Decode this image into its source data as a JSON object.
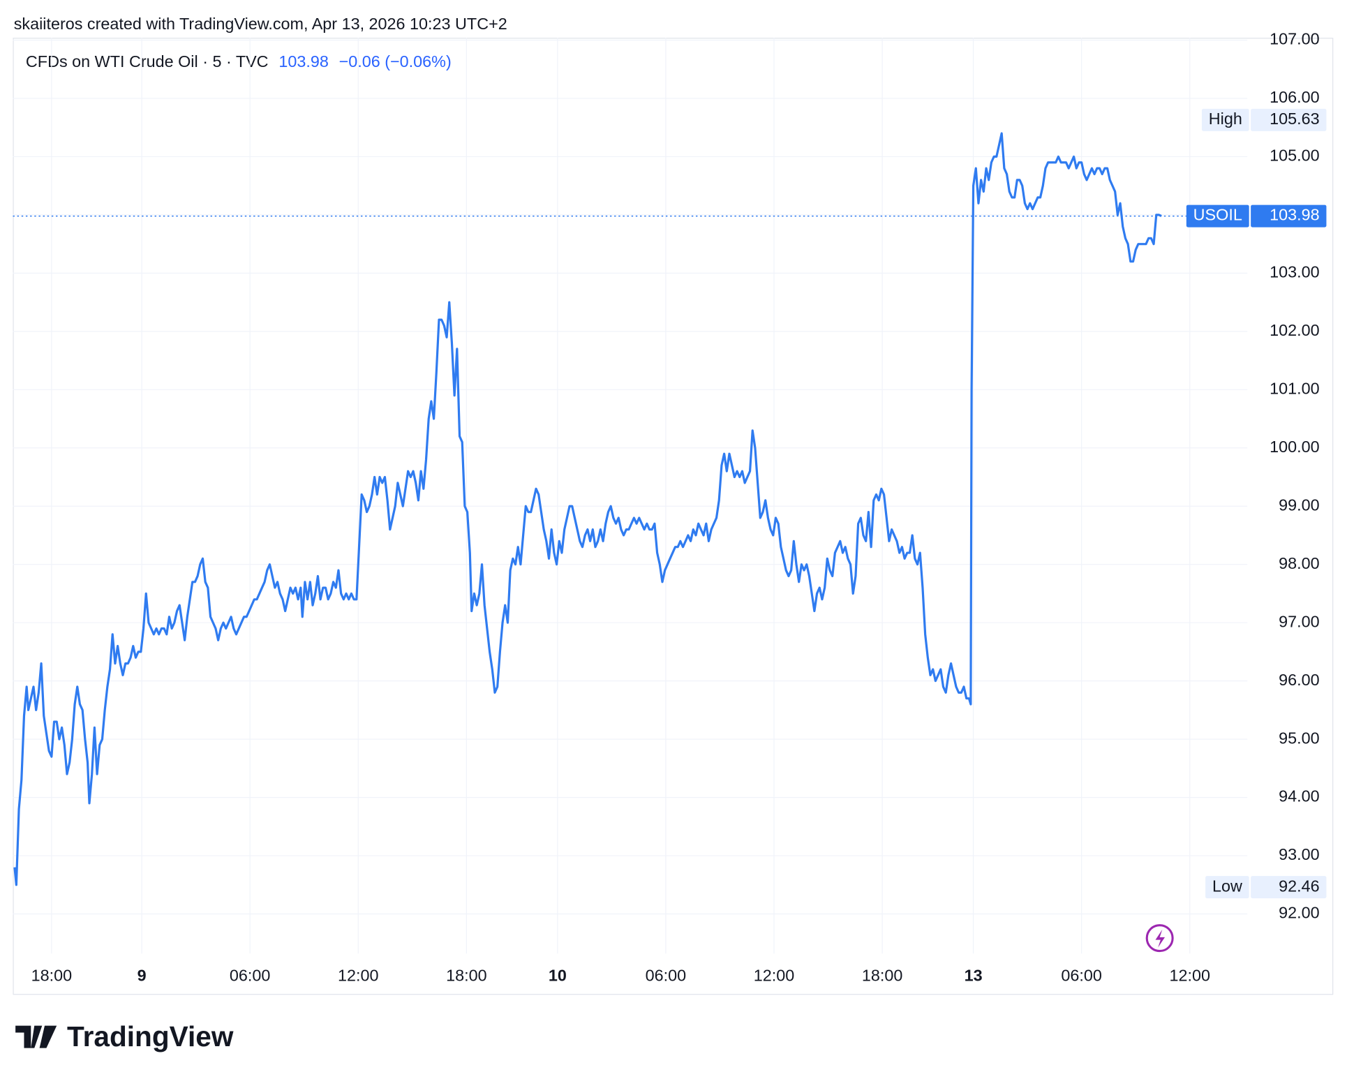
{
  "chart_data": {
    "type": "line",
    "attribution": "skaiiteros created with TradingView.com, Apr 13, 2026 10:23 UTC+2",
    "title": "CFDs on WTI Crude Oil · 5 · TVC",
    "last_price": 103.98,
    "change": "−0.06 (−0.06%)",
    "brand": "TradingView",
    "color": "#2f7bf0",
    "grid": true,
    "xlim": [
      15,
      1452
    ],
    "xticks": [
      {
        "value": 60,
        "label": "18:00"
      },
      {
        "value": 165,
        "label": "9"
      },
      {
        "value": 291,
        "label": "06:00"
      },
      {
        "value": 417,
        "label": "12:00"
      },
      {
        "value": 543,
        "label": "18:00"
      },
      {
        "value": 649,
        "label": "10"
      },
      {
        "value": 775,
        "label": "06:00"
      },
      {
        "value": 901,
        "label": "12:00"
      },
      {
        "value": 1027,
        "label": "18:00"
      },
      {
        "value": 1133,
        "label": "13"
      },
      {
        "value": 1259,
        "label": "06:00"
      },
      {
        "value": 1385,
        "label": "12:00"
      }
    ],
    "ylim": [
      91.32,
      107.04
    ],
    "yticks": [
      {
        "value": 92,
        "label": "92.00"
      },
      {
        "value": 93,
        "label": "93.00"
      },
      {
        "value": 94,
        "label": "94.00"
      },
      {
        "value": 95,
        "label": "95.00"
      },
      {
        "value": 96,
        "label": "96.00"
      },
      {
        "value": 97,
        "label": "97.00"
      },
      {
        "value": 98,
        "label": "98.00"
      },
      {
        "value": 99,
        "label": "99.00"
      },
      {
        "value": 100,
        "label": "100.00"
      },
      {
        "value": 101,
        "label": "101.00"
      },
      {
        "value": 102,
        "label": "102.00"
      },
      {
        "value": 103,
        "label": "103.00"
      },
      {
        "value": 104,
        "label": "104.00"
      },
      {
        "value": 105,
        "label": "105.00"
      },
      {
        "value": 106,
        "label": "106.00"
      },
      {
        "value": 107,
        "label": "107.00"
      }
    ],
    "high": {
      "label": "High",
      "value": 105.63
    },
    "low": {
      "label": "Low",
      "value": 92.46
    },
    "last": {
      "label": "USOIL",
      "value": 103.98
    },
    "x": [
      17,
      19,
      22,
      25,
      28,
      31,
      33,
      36,
      39,
      42,
      45,
      48,
      51,
      54,
      57,
      60,
      63,
      66,
      69,
      72,
      75,
      78,
      81,
      84,
      87,
      90,
      93,
      96,
      99,
      102,
      104,
      107,
      110,
      113,
      116,
      119,
      122,
      125,
      128,
      131,
      134,
      137,
      140,
      143,
      146,
      149,
      152,
      155,
      158,
      161,
      164,
      167,
      170,
      173,
      176,
      179,
      182,
      185,
      188,
      191,
      194,
      197,
      200,
      203,
      206,
      209,
      212,
      215,
      218,
      221,
      224,
      227,
      230,
      233,
      236,
      239,
      242,
      245,
      248,
      251,
      254,
      257,
      260,
      263,
      266,
      269,
      272,
      275,
      278,
      281,
      284,
      287,
      290,
      293,
      296,
      299,
      302,
      305,
      308,
      311,
      314,
      317,
      320,
      323,
      326,
      329,
      332,
      335,
      338,
      341,
      344,
      347,
      350,
      352,
      355,
      358,
      361,
      364,
      367,
      370,
      373,
      376,
      379,
      382,
      385,
      388,
      391,
      394,
      397,
      400,
      403,
      406,
      409,
      412,
      415,
      418,
      421,
      424,
      427,
      430,
      433,
      436,
      439,
      442,
      445,
      448,
      451,
      454,
      457,
      460,
      463,
      466,
      469,
      472,
      475,
      478,
      481,
      484,
      487,
      490,
      493,
      496,
      499,
      502,
      505,
      508,
      511,
      514,
      517,
      520,
      523,
      526,
      529,
      532,
      535,
      538,
      541,
      544,
      547,
      549,
      552,
      555,
      558,
      561,
      564,
      567,
      570,
      573,
      576,
      579,
      582,
      585,
      588,
      591,
      594,
      597,
      600,
      603,
      606,
      609,
      612,
      615,
      618,
      621,
      624,
      627,
      630,
      633,
      636,
      639,
      642,
      645,
      648,
      651,
      654,
      657,
      660,
      663,
      666,
      669,
      672,
      675,
      678,
      681,
      684,
      687,
      690,
      693,
      696,
      699,
      702,
      705,
      708,
      711,
      714,
      717,
      720,
      723,
      726,
      729,
      732,
      735,
      738,
      741,
      744,
      747,
      750,
      753,
      756,
      759,
      762,
      765,
      768,
      771,
      774,
      777,
      780,
      783,
      786,
      789,
      792,
      795,
      798,
      801,
      804,
      807,
      810,
      813,
      816,
      819,
      822,
      825,
      828,
      831,
      834,
      837,
      840,
      843,
      846,
      849,
      852,
      855,
      858,
      861,
      864,
      867,
      870,
      873,
      876,
      879,
      882,
      885,
      888,
      891,
      894,
      897,
      900,
      903,
      906,
      909,
      912,
      915,
      918,
      921,
      924,
      927,
      930,
      933,
      936,
      939,
      942,
      945,
      948,
      951,
      954,
      957,
      960,
      963,
      966,
      969,
      972,
      975,
      978,
      981,
      984,
      987,
      990,
      993,
      996,
      999,
      1002,
      1005,
      1008,
      1011,
      1014,
      1017,
      1020,
      1023,
      1026,
      1029,
      1032,
      1035,
      1038,
      1041,
      1044,
      1047,
      1050,
      1053,
      1056,
      1059,
      1062,
      1065,
      1068,
      1071,
      1074,
      1077,
      1080,
      1083,
      1086,
      1089,
      1092,
      1095,
      1098,
      1101,
      1104,
      1107,
      1110,
      1113,
      1116,
      1119,
      1122,
      1125,
      1128,
      1130,
      1131,
      1133,
      1136,
      1139,
      1142,
      1145,
      1148,
      1151,
      1154,
      1157,
      1160,
      1163,
      1166,
      1169,
      1172,
      1175,
      1178,
      1181,
      1184,
      1187,
      1190,
      1193,
      1196,
      1199,
      1202,
      1205,
      1208,
      1211,
      1214,
      1217,
      1220,
      1223,
      1226,
      1229,
      1232,
      1235,
      1238,
      1241,
      1244,
      1247,
      1250,
      1253,
      1256,
      1259,
      1262,
      1265,
      1268,
      1271,
      1274,
      1277,
      1280,
      1283,
      1286,
      1289,
      1292,
      1295,
      1298,
      1301,
      1304,
      1307,
      1310,
      1313,
      1316,
      1319,
      1322,
      1325,
      1328,
      1331,
      1334,
      1337,
      1340,
      1343,
      1346,
      1349,
      1352
    ],
    "values": [
      92.8,
      92.5,
      93.8,
      94.3,
      95.4,
      95.9,
      95.5,
      95.7,
      95.9,
      95.5,
      95.8,
      96.3,
      95.4,
      95.1,
      94.8,
      94.7,
      95.3,
      95.3,
      95.0,
      95.2,
      94.9,
      94.4,
      94.6,
      95.0,
      95.6,
      95.9,
      95.6,
      95.5,
      95.0,
      94.6,
      93.9,
      94.4,
      95.2,
      94.4,
      94.9,
      95.0,
      95.5,
      95.9,
      96.2,
      96.8,
      96.3,
      96.6,
      96.3,
      96.1,
      96.3,
      96.3,
      96.4,
      96.6,
      96.4,
      96.5,
      96.5,
      96.9,
      97.5,
      97.0,
      96.9,
      96.8,
      96.9,
      96.8,
      96.9,
      96.9,
      96.8,
      97.1,
      96.9,
      97.0,
      97.2,
      97.3,
      97.0,
      96.7,
      97.1,
      97.4,
      97.7,
      97.7,
      97.8,
      98.0,
      98.1,
      97.7,
      97.6,
      97.1,
      97.0,
      96.9,
      96.7,
      96.9,
      97.0,
      96.9,
      97.0,
      97.1,
      96.9,
      96.8,
      96.9,
      97.0,
      97.1,
      97.1,
      97.2,
      97.3,
      97.4,
      97.4,
      97.5,
      97.6,
      97.7,
      97.9,
      98.0,
      97.8,
      97.6,
      97.7,
      97.5,
      97.4,
      97.2,
      97.4,
      97.6,
      97.5,
      97.6,
      97.4,
      97.6,
      97.1,
      97.7,
      97.4,
      97.7,
      97.3,
      97.5,
      97.8,
      97.4,
      97.6,
      97.6,
      97.4,
      97.5,
      97.7,
      97.6,
      97.9,
      97.5,
      97.4,
      97.5,
      97.4,
      97.5,
      97.4,
      97.4,
      98.3,
      99.2,
      99.1,
      98.9,
      99.0,
      99.2,
      99.5,
      99.2,
      99.5,
      99.4,
      99.5,
      99.1,
      98.6,
      98.8,
      99.0,
      99.4,
      99.2,
      99.0,
      99.3,
      99.6,
      99.5,
      99.6,
      99.4,
      99.1,
      99.6,
      99.3,
      99.8,
      100.5,
      100.8,
      100.5,
      101.3,
      102.2,
      102.2,
      102.1,
      101.9,
      102.5,
      101.8,
      100.9,
      101.7,
      100.2,
      100.1,
      99.0,
      98.9,
      98.2,
      97.2,
      97.5,
      97.3,
      97.5,
      98.0,
      97.3,
      96.9,
      96.5,
      96.2,
      95.8,
      95.9,
      96.5,
      97.0,
      97.3,
      97.0,
      97.9,
      98.1,
      98.0,
      98.3,
      98.0,
      98.5,
      99.0,
      98.9,
      98.9,
      99.1,
      99.3,
      99.2,
      98.9,
      98.6,
      98.4,
      98.1,
      98.6,
      98.2,
      98.0,
      98.4,
      98.2,
      98.6,
      98.8,
      99.0,
      99.0,
      98.8,
      98.6,
      98.4,
      98.3,
      98.5,
      98.6,
      98.4,
      98.6,
      98.3,
      98.4,
      98.6,
      98.4,
      98.7,
      98.9,
      99.0,
      98.8,
      98.7,
      98.8,
      98.6,
      98.5,
      98.6,
      98.6,
      98.7,
      98.8,
      98.7,
      98.8,
      98.7,
      98.6,
      98.7,
      98.6,
      98.6,
      98.7,
      98.2,
      98.0,
      97.7,
      97.9,
      98.0,
      98.1,
      98.2,
      98.3,
      98.3,
      98.4,
      98.3,
      98.4,
      98.5,
      98.4,
      98.6,
      98.5,
      98.7,
      98.6,
      98.5,
      98.7,
      98.4,
      98.6,
      98.7,
      98.8,
      99.1,
      99.7,
      99.9,
      99.6,
      99.9,
      99.7,
      99.5,
      99.6,
      99.5,
      99.6,
      99.4,
      99.5,
      99.6,
      100.3,
      100.0,
      99.4,
      98.8,
      98.9,
      99.1,
      98.8,
      98.6,
      98.5,
      98.8,
      98.7,
      98.3,
      98.1,
      97.9,
      97.8,
      97.9,
      98.4,
      98.0,
      97.7,
      98.0,
      97.9,
      98.0,
      97.8,
      97.5,
      97.2,
      97.5,
      97.6,
      97.4,
      97.6,
      98.1,
      97.9,
      97.8,
      98.2,
      98.3,
      98.4,
      98.2,
      98.3,
      98.1,
      98.0,
      97.5,
      97.8,
      98.7,
      98.8,
      98.5,
      98.4,
      98.9,
      98.3,
      99.1,
      99.2,
      99.1,
      99.3,
      99.2,
      98.8,
      98.4,
      98.6,
      98.5,
      98.4,
      98.2,
      98.3,
      98.1,
      98.2,
      98.2,
      98.5,
      98.1,
      98.0,
      98.2,
      97.6,
      96.8,
      96.4,
      96.1,
      96.2,
      96.0,
      96.1,
      96.2,
      95.9,
      95.8,
      96.1,
      96.3,
      96.1,
      95.9,
      95.8,
      95.8,
      95.9,
      95.7,
      95.7,
      95.6,
      101.0,
      104.5,
      104.8,
      104.2,
      104.6,
      104.4,
      104.8,
      104.6,
      104.9,
      105.0,
      105.0,
      105.2,
      105.4,
      104.8,
      104.7,
      104.4,
      104.3,
      104.3,
      104.6,
      104.6,
      104.5,
      104.2,
      104.1,
      104.2,
      104.1,
      104.2,
      104.3,
      104.3,
      104.5,
      104.8,
      104.9,
      104.9,
      104.9,
      104.9,
      105.0,
      104.9,
      104.9,
      104.9,
      104.8,
      104.9,
      105.0,
      104.8,
      104.9,
      104.9,
      104.7,
      104.6,
      104.7,
      104.8,
      104.7,
      104.8,
      104.8,
      104.7,
      104.8,
      104.8,
      104.6,
      104.5,
      104.4,
      104.0,
      104.2,
      103.8,
      103.6,
      103.5,
      103.2,
      103.2,
      103.4,
      103.5,
      103.5,
      103.5,
      103.5,
      103.6,
      103.6,
      103.5,
      104.0,
      104.0,
      103.98
    ]
  }
}
